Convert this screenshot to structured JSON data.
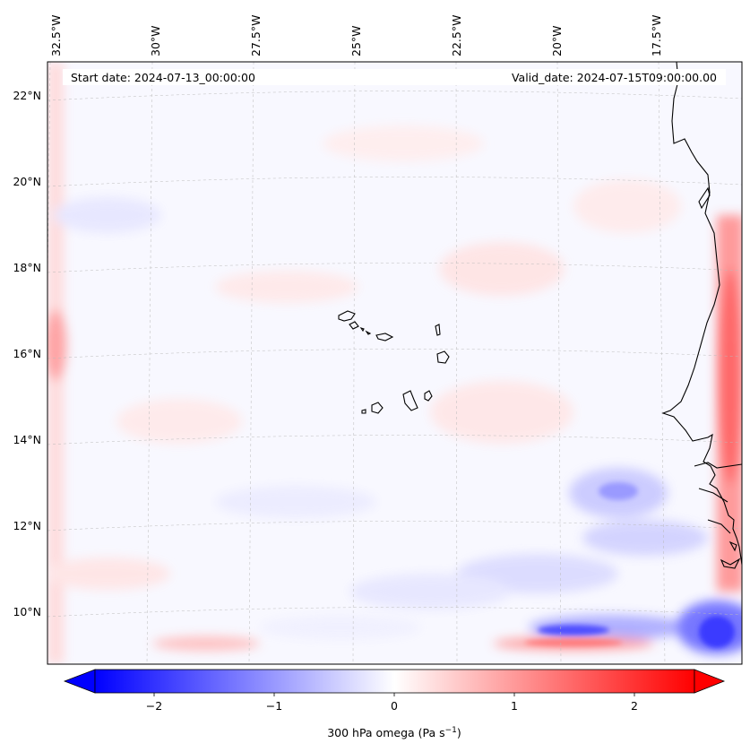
{
  "map": {
    "start_label": "Start date: 2024-07-13_00:00:00",
    "valid_label": "Valid_date: 2024-07-15T09:00:00.00",
    "lon_ticks": [
      "32.5°W",
      "30°W",
      "27.5°W",
      "25°W",
      "22.5°W",
      "20°W",
      "17.5°W"
    ],
    "lat_ticks": [
      "22°N",
      "20°N",
      "18°N",
      "16°N",
      "14°N",
      "12°N",
      "10°N"
    ],
    "lon_range": [
      -33,
      -16
    ],
    "lat_range": [
      8.8,
      22.8
    ],
    "gridlines": "on"
  },
  "colorbar": {
    "label_main": "300 hPa omega (Pa s",
    "label_exp": "−1",
    "label_close": ")",
    "ticks": [
      "−2",
      "−1",
      "0",
      "1",
      "2"
    ],
    "range": [
      -2.5,
      2.5
    ],
    "colormap": "bwr",
    "extend": "both"
  },
  "colors": {
    "negative": "#0000ff",
    "neutral": "#ffffff",
    "positive": "#ff0000",
    "coastline": "#000000"
  }
}
